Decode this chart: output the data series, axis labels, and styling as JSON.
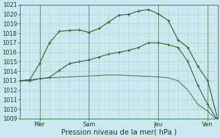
{
  "bg_color": "#cbe8f0",
  "grid_color": "#a8d4c0",
  "line_color": "#2d6a35",
  "line1_y": [
    1013.0,
    1013.1,
    1014.8,
    1017.0,
    1018.2,
    1018.3,
    1018.35,
    1018.1,
    1018.5,
    1019.2,
    1019.9,
    1020.0,
    1020.35,
    1020.5,
    1020.05,
    1019.35,
    1017.3,
    1016.5,
    1014.5,
    1013.0,
    1009.0
  ],
  "line2_y": [
    1013.0,
    1013.0,
    1013.2,
    1013.35,
    1014.1,
    1014.8,
    1015.0,
    1015.2,
    1015.5,
    1015.8,
    1016.0,
    1016.2,
    1016.5,
    1017.0,
    1017.0,
    1016.8,
    1016.5,
    1015.0,
    1012.5,
    1010.5,
    1008.8
  ],
  "line3_y": [
    1013.0,
    1013.1,
    1013.2,
    1013.3,
    1013.35,
    1013.4,
    1013.45,
    1013.5,
    1013.55,
    1013.6,
    1013.6,
    1013.55,
    1013.5,
    1013.45,
    1013.4,
    1013.3,
    1013.0,
    1012.0,
    1010.5,
    1009.8,
    1008.8
  ],
  "n_points": 21,
  "vline_positions": [
    2,
    7,
    14,
    19
  ],
  "ylim": [
    1009,
    1021
  ],
  "ytick_values": [
    1009,
    1010,
    1011,
    1012,
    1013,
    1014,
    1015,
    1016,
    1017,
    1018,
    1019,
    1020,
    1021
  ],
  "xtick_positions": [
    2,
    7,
    14,
    19
  ],
  "xtick_labels": [
    "Mer",
    "Sam",
    "Jeu",
    "Ven"
  ],
  "xlabel": "Pression niveau de la mer( hPa )",
  "xlabel_fontsize": 7.5,
  "tick_fontsize": 6.0,
  "figsize": [
    3.2,
    2.0
  ],
  "dpi": 100
}
